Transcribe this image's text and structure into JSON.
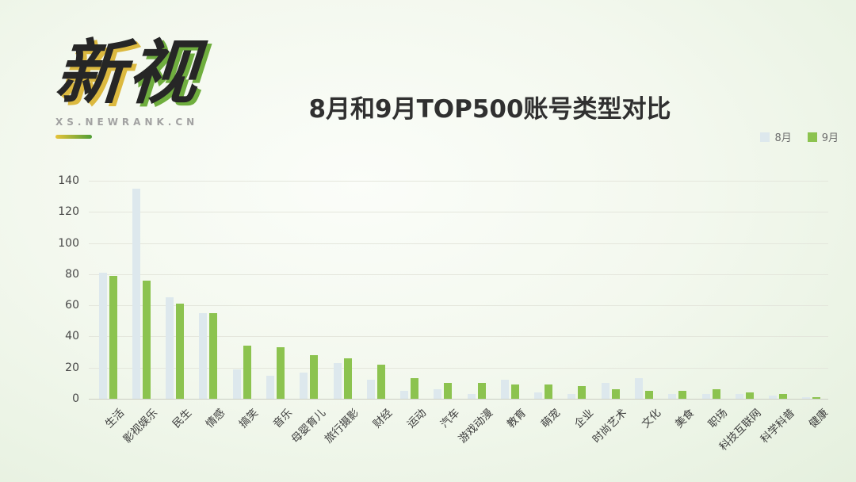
{
  "brand": {
    "logo_char1": "新",
    "logo_char2": "视",
    "site_url": "XS.NEWRANK.CN"
  },
  "header": {
    "title": "8月和9月TOP500账号类型对比"
  },
  "chart_data": {
    "type": "bar",
    "title": "8月和9月TOP500账号类型对比",
    "categories": [
      "生活",
      "影视娱乐",
      "民生",
      "情感",
      "搞笑",
      "音乐",
      "母婴育儿",
      "旅行摄影",
      "财经",
      "运动",
      "汽车",
      "游戏动漫",
      "教育",
      "萌宠",
      "企业",
      "时尚艺术",
      "文化",
      "美食",
      "职场",
      "科技互联网",
      "科学科普",
      "健康"
    ],
    "series": [
      {
        "name": "8月",
        "color": "#dde8ed",
        "values": [
          81,
          135,
          65,
          55,
          19,
          15,
          17,
          23,
          12,
          5,
          6,
          3,
          12,
          4,
          3,
          10,
          13,
          3,
          3,
          3,
          2,
          1
        ]
      },
      {
        "name": "9月",
        "color": "#8cc34f",
        "values": [
          79,
          76,
          61,
          55,
          34,
          33,
          28,
          26,
          22,
          13,
          10,
          10,
          9,
          9,
          8,
          6,
          5,
          5,
          6,
          4,
          3,
          1
        ]
      }
    ],
    "xlabel": "",
    "ylabel": "",
    "ylim": [
      0,
      140
    ],
    "ytick_step": 20,
    "grid": true,
    "legend_position": "top-right"
  }
}
